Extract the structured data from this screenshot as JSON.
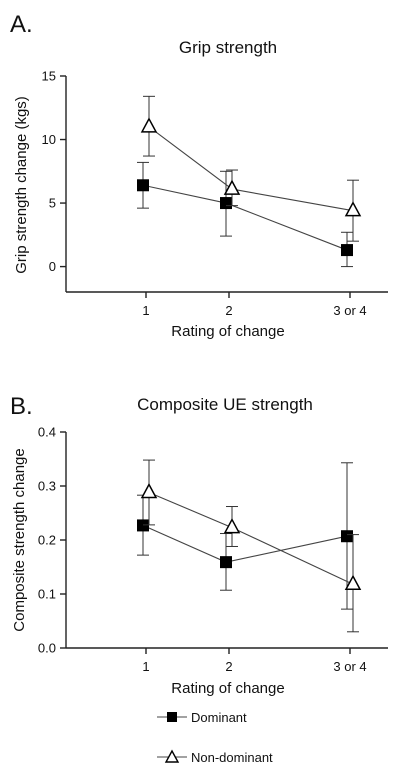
{
  "legend": {
    "items": [
      {
        "label": "Dominant",
        "marker": "square"
      },
      {
        "label": "Non-dominant",
        "marker": "triangle"
      }
    ]
  },
  "chart_data": [
    {
      "panel_letter": "A.",
      "type": "line",
      "title": "Grip strength",
      "xlabel": "Rating of change",
      "ylabel": "Grip strength change (kgs)",
      "categories": [
        "1",
        "2",
        "3 or 4"
      ],
      "ylim": [
        -2,
        15
      ],
      "yticks": [
        0,
        5,
        10,
        15
      ],
      "ytick_labels": [
        "0",
        "5",
        "10",
        "15"
      ],
      "series": [
        {
          "name": "Dominant",
          "marker": "square",
          "values": [
            6.4,
            5.0,
            1.3
          ],
          "err_low": [
            4.6,
            2.4,
            0.0
          ],
          "err_high": [
            8.2,
            7.5,
            2.7
          ]
        },
        {
          "name": "Non-dominant",
          "marker": "triangle",
          "values": [
            11.0,
            6.1,
            4.4
          ],
          "err_low": [
            8.7,
            4.8,
            2.0
          ],
          "err_high": [
            13.4,
            7.6,
            6.8
          ]
        }
      ]
    },
    {
      "panel_letter": "B.",
      "type": "line",
      "title": "Composite UE strength",
      "xlabel": "Rating of change",
      "ylabel": "Composite strength change",
      "categories": [
        "1",
        "2",
        "3 or 4"
      ],
      "ylim": [
        0,
        0.4
      ],
      "yticks": [
        0,
        0.1,
        0.2,
        0.3,
        0.4
      ],
      "ytick_labels": [
        "0.0",
        "0.1",
        "0.2",
        "0.3",
        "0.4"
      ],
      "series": [
        {
          "name": "Dominant",
          "marker": "square",
          "values": [
            0.227,
            0.159,
            0.207
          ],
          "err_low": [
            0.172,
            0.107,
            0.072
          ],
          "err_high": [
            0.283,
            0.212,
            0.343
          ]
        },
        {
          "name": "Non-dominant",
          "marker": "triangle",
          "values": [
            0.288,
            0.223,
            0.118
          ],
          "err_low": [
            0.228,
            0.188,
            0.03
          ],
          "err_high": [
            0.348,
            0.262,
            0.21
          ]
        }
      ]
    }
  ]
}
